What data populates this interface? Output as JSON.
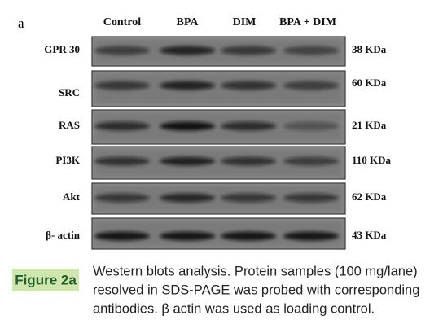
{
  "panel_label": "a",
  "columns": [
    "Control",
    "BPA",
    "DIM",
    "BPA + DIM"
  ],
  "rows": [
    {
      "label": "GPR 30",
      "size": "38 KDa"
    },
    {
      "label": "SRC",
      "size": "60 KDa"
    },
    {
      "label": "RAS",
      "size": "21 KDa"
    },
    {
      "label": "PI3K",
      "size": "110 KDa"
    },
    {
      "label": "Akt",
      "size": "62 KDa"
    },
    {
      "label": "β- actin",
      "size": "43 KDa"
    }
  ],
  "caption": {
    "label": "Figure 2a",
    "lines": [
      "Western blots analysis. Protein samples (100 mg/lane)",
      "resolved in SDS-PAGE was probed with corresponding",
      "antibodies. β actin was used as loading control."
    ]
  }
}
